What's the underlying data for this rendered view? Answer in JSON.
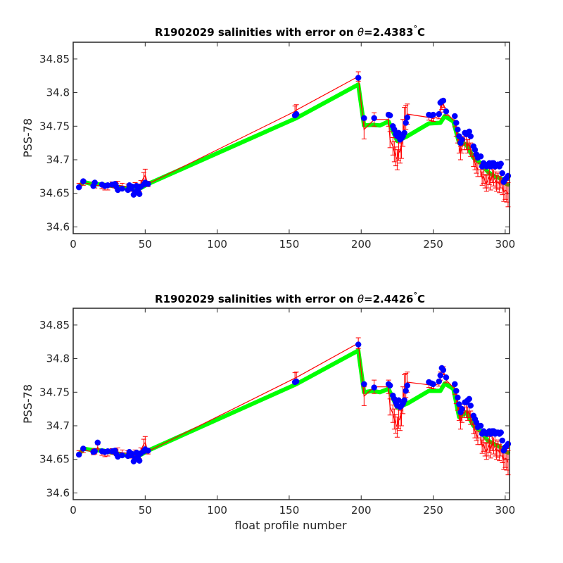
{
  "colors": {
    "background": "#ffffff",
    "axes": "#262626",
    "series_fit": "#00ff00",
    "series_obs": "#0000ff",
    "error_bars": "#ff0000"
  },
  "chart_data": [
    {
      "type": "line",
      "title_prefix": "R1902029 salinities with error on ",
      "title_theta": "θ",
      "title_suffix": "=2.4383",
      "title_degree": "°",
      "title_unit": "C",
      "xlabel": "",
      "ylabel": "PSS-78",
      "xlim": [
        0,
        303
      ],
      "ylim": [
        34.59,
        34.875
      ],
      "xticks": [
        0,
        50,
        100,
        150,
        200,
        250,
        300
      ],
      "yticks": [
        "34.6",
        "34.65",
        "34.7",
        "34.75",
        "34.8",
        "34.85"
      ],
      "series": [
        {
          "role": "calibrated fit",
          "x": [
            5,
            7,
            13,
            21,
            27,
            33,
            38,
            42,
            47,
            52,
            155,
            198,
            202,
            208,
            213,
            219,
            225,
            232,
            247,
            255,
            258,
            264,
            268,
            273,
            278,
            283,
            288,
            293,
            297,
            300,
            302
          ],
          "y": [
            34.662,
            34.667,
            34.664,
            34.663,
            34.661,
            34.659,
            34.657,
            34.656,
            34.658,
            34.664,
            34.762,
            34.812,
            34.751,
            34.752,
            34.751,
            34.757,
            34.728,
            34.735,
            34.754,
            34.755,
            34.765,
            34.757,
            34.725,
            34.723,
            34.703,
            34.695,
            34.682,
            34.675,
            34.672,
            34.665,
            34.663
          ]
        },
        {
          "role": "observed with error",
          "x": [
            4,
            7,
            14,
            15,
            20,
            22,
            24,
            27,
            29,
            30,
            31,
            34,
            38,
            39,
            40,
            41,
            42,
            43,
            44,
            45,
            46,
            47,
            49,
            50,
            52,
            154,
            155,
            198,
            202,
            209,
            219,
            220,
            222,
            223,
            224,
            225,
            226,
            227,
            228,
            229,
            230,
            231,
            232,
            247,
            249,
            250,
            254,
            255,
            256,
            257,
            259,
            265,
            266,
            267,
            268,
            269,
            270,
            272,
            273,
            274,
            275,
            276,
            278,
            279,
            280,
            281,
            283,
            284,
            285,
            286,
            287,
            288,
            289,
            290,
            291,
            292,
            293,
            294,
            295,
            296,
            297,
            298,
            299,
            300,
            301,
            302
          ],
          "y": [
            34.659,
            34.668,
            34.661,
            34.666,
            34.663,
            34.661,
            34.662,
            34.663,
            34.664,
            34.66,
            34.655,
            34.657,
            34.655,
            34.662,
            34.657,
            34.66,
            34.648,
            34.652,
            34.661,
            34.655,
            34.649,
            34.66,
            34.663,
            34.666,
            34.664,
            34.766,
            34.768,
            34.822,
            34.762,
            34.762,
            34.767,
            34.766,
            34.75,
            34.745,
            34.738,
            34.735,
            34.74,
            34.73,
            34.732,
            34.735,
            34.74,
            34.755,
            34.763,
            34.767,
            34.766,
            34.767,
            34.768,
            34.785,
            34.787,
            34.788,
            34.772,
            34.765,
            34.755,
            34.745,
            34.735,
            34.725,
            34.73,
            34.74,
            34.738,
            34.74,
            34.742,
            34.735,
            34.72,
            34.715,
            34.708,
            34.703,
            34.705,
            34.69,
            34.695,
            34.693,
            34.69,
            34.692,
            34.695,
            34.69,
            34.695,
            34.695,
            34.69,
            34.692,
            34.693,
            34.69,
            34.694,
            34.68,
            34.667,
            34.671,
            34.673,
            34.676
          ],
          "calibrated": [
            34.661,
            34.666,
            34.663,
            34.662,
            34.661,
            34.659,
            34.659,
            34.663,
            34.662,
            34.661,
            34.662,
            34.661,
            34.66,
            34.658,
            34.658,
            34.657,
            34.659,
            34.662,
            34.658,
            34.66,
            34.657,
            34.665,
            34.674,
            34.677,
            34.664,
            34.772,
            34.774,
            34.824,
            34.745,
            34.76,
            34.76,
            34.73,
            34.72,
            34.712,
            34.705,
            34.7,
            34.715,
            34.71,
            34.72,
            34.74,
            34.758,
            34.763,
            34.768,
            34.763,
            34.762,
            34.761,
            34.765,
            34.777,
            34.781,
            34.784,
            34.77,
            34.757,
            34.745,
            34.735,
            34.72,
            34.71,
            34.72,
            34.725,
            34.725,
            34.72,
            34.725,
            34.715,
            34.7,
            34.695,
            34.69,
            34.685,
            34.685,
            34.672,
            34.675,
            34.668,
            34.665,
            34.67,
            34.675,
            34.667,
            34.678,
            34.673,
            34.67,
            34.665,
            34.668,
            34.663,
            34.67,
            34.66,
            34.652,
            34.655,
            34.653,
            34.648
          ],
          "error": [
            0.004,
            0.004,
            0.004,
            0.004,
            0.004,
            0.004,
            0.004,
            0.004,
            0.004,
            0.004,
            0.006,
            0.004,
            0.004,
            0.004,
            0.004,
            0.004,
            0.004,
            0.004,
            0.004,
            0.004,
            0.004,
            0.004,
            0.007,
            0.009,
            0.004,
            0.008,
            0.008,
            0.007,
            0.014,
            0.01,
            0.01,
            0.012,
            0.013,
            0.015,
            0.014,
            0.015,
            0.016,
            0.015,
            0.018,
            0.02,
            0.02,
            0.018,
            0.015,
            0.004,
            0.004,
            0.004,
            0.004,
            0.006,
            0.006,
            0.006,
            0.004,
            0.008,
            0.01,
            0.01,
            0.01,
            0.01,
            0.01,
            0.01,
            0.01,
            0.01,
            0.01,
            0.01,
            0.01,
            0.01,
            0.01,
            0.01,
            0.01,
            0.01,
            0.01,
            0.01,
            0.012,
            0.012,
            0.012,
            0.012,
            0.012,
            0.012,
            0.012,
            0.012,
            0.012,
            0.012,
            0.012,
            0.012,
            0.014,
            0.014,
            0.016,
            0.018
          ]
        }
      ]
    },
    {
      "type": "line",
      "title_prefix": "R1902029 salinities with error on ",
      "title_theta": "θ",
      "title_suffix": "=2.4426",
      "title_degree": "°",
      "title_unit": "C",
      "xlabel": "float profile number",
      "ylabel": "PSS-78",
      "xlim": [
        0,
        303
      ],
      "ylim": [
        34.59,
        34.875
      ],
      "xticks": [
        0,
        50,
        100,
        150,
        200,
        250,
        300
      ],
      "yticks": [
        "34.6",
        "34.65",
        "34.7",
        "34.75",
        "34.8",
        "34.85"
      ],
      "series": [
        {
          "role": "calibrated fit",
          "x": [
            5,
            7,
            13,
            21,
            27,
            33,
            38,
            42,
            47,
            52,
            155,
            198,
            202,
            208,
            213,
            219,
            225,
            232,
            247,
            255,
            258,
            264,
            268,
            273,
            278,
            283,
            288,
            293,
            297,
            300,
            302
          ],
          "y": [
            34.66,
            34.666,
            34.664,
            34.663,
            34.66,
            34.658,
            34.655,
            34.655,
            34.657,
            34.663,
            34.762,
            34.812,
            34.75,
            34.752,
            34.75,
            34.755,
            34.727,
            34.733,
            34.752,
            34.752,
            34.763,
            34.755,
            34.713,
            34.72,
            34.7,
            34.692,
            34.678,
            34.672,
            34.668,
            34.662,
            34.66
          ]
        },
        {
          "role": "observed with error",
          "x": [
            4,
            7,
            14,
            15,
            17,
            20,
            22,
            24,
            27,
            29,
            30,
            31,
            34,
            38,
            39,
            40,
            41,
            42,
            43,
            44,
            45,
            46,
            47,
            49,
            50,
            52,
            154,
            155,
            198,
            202,
            209,
            219,
            220,
            222,
            223,
            224,
            225,
            226,
            227,
            228,
            229,
            230,
            231,
            232,
            247,
            249,
            250,
            254,
            255,
            256,
            257,
            259,
            265,
            266,
            267,
            268,
            269,
            270,
            272,
            273,
            274,
            275,
            276,
            278,
            279,
            280,
            281,
            283,
            284,
            285,
            286,
            287,
            288,
            289,
            290,
            291,
            292,
            293,
            294,
            295,
            296,
            297,
            298,
            299,
            300,
            301,
            302
          ],
          "y": [
            34.657,
            34.666,
            34.661,
            34.662,
            34.675,
            34.662,
            34.661,
            34.662,
            34.662,
            34.663,
            34.658,
            34.654,
            34.656,
            34.655,
            34.661,
            34.656,
            34.658,
            34.647,
            34.651,
            34.66,
            34.654,
            34.648,
            34.659,
            34.662,
            34.665,
            34.663,
            34.765,
            34.766,
            34.821,
            34.762,
            34.757,
            34.762,
            34.76,
            34.745,
            34.74,
            34.735,
            34.73,
            34.738,
            34.728,
            34.73,
            34.733,
            34.738,
            34.752,
            34.76,
            34.765,
            34.763,
            34.762,
            34.766,
            34.775,
            34.786,
            34.783,
            34.772,
            34.762,
            34.752,
            34.742,
            34.732,
            34.72,
            34.725,
            34.735,
            34.735,
            34.738,
            34.74,
            34.73,
            34.715,
            34.71,
            34.705,
            34.698,
            34.7,
            34.688,
            34.692,
            34.69,
            34.688,
            34.69,
            34.692,
            34.688,
            34.692,
            34.692,
            34.688,
            34.69,
            34.69,
            34.688,
            34.69,
            34.678,
            34.663,
            34.668,
            34.67,
            34.673
          ],
          "calibrated": [
            34.659,
            34.664,
            34.661,
            34.662,
            34.668,
            34.66,
            34.658,
            34.659,
            34.662,
            34.661,
            34.66,
            34.661,
            34.66,
            34.659,
            34.657,
            34.656,
            34.656,
            34.657,
            34.66,
            34.656,
            34.658,
            34.655,
            34.663,
            34.673,
            34.675,
            34.662,
            34.771,
            34.772,
            34.823,
            34.744,
            34.758,
            34.758,
            34.728,
            34.718,
            34.71,
            34.703,
            34.698,
            34.712,
            34.708,
            34.718,
            34.738,
            34.756,
            34.76,
            34.765,
            34.761,
            34.76,
            34.759,
            34.763,
            34.774,
            34.779,
            34.782,
            34.768,
            34.755,
            34.743,
            34.733,
            34.718,
            34.705,
            34.715,
            34.722,
            34.722,
            34.718,
            34.722,
            34.712,
            34.698,
            34.692,
            34.688,
            34.682,
            34.682,
            34.669,
            34.672,
            34.665,
            34.662,
            34.667,
            34.672,
            34.664,
            34.675,
            34.67,
            34.667,
            34.662,
            34.665,
            34.66,
            34.667,
            34.657,
            34.649,
            34.652,
            34.65,
            34.645
          ],
          "error": [
            0.004,
            0.004,
            0.004,
            0.004,
            0.004,
            0.004,
            0.004,
            0.004,
            0.004,
            0.004,
            0.004,
            0.006,
            0.004,
            0.004,
            0.004,
            0.004,
            0.004,
            0.004,
            0.004,
            0.004,
            0.004,
            0.004,
            0.004,
            0.007,
            0.009,
            0.004,
            0.008,
            0.008,
            0.008,
            0.014,
            0.01,
            0.01,
            0.012,
            0.013,
            0.015,
            0.014,
            0.015,
            0.016,
            0.015,
            0.018,
            0.02,
            0.02,
            0.018,
            0.015,
            0.004,
            0.004,
            0.004,
            0.004,
            0.006,
            0.006,
            0.006,
            0.004,
            0.008,
            0.01,
            0.01,
            0.01,
            0.01,
            0.01,
            0.01,
            0.01,
            0.01,
            0.01,
            0.01,
            0.01,
            0.01,
            0.01,
            0.01,
            0.01,
            0.01,
            0.01,
            0.01,
            0.012,
            0.012,
            0.012,
            0.012,
            0.012,
            0.012,
            0.012,
            0.012,
            0.012,
            0.012,
            0.012,
            0.012,
            0.014,
            0.014,
            0.016,
            0.018
          ]
        }
      ]
    }
  ]
}
